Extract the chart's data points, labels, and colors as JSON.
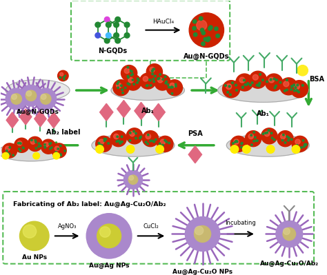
{
  "background_color": "#ffffff",
  "colors": {
    "red_ball": "#cc2200",
    "green_arrow": "#33aa33",
    "purple_spike": "#9966bb",
    "purple_core": "#aa88cc",
    "yellow_ball": "#dddd22",
    "yellow_green": "#bbcc22",
    "gray_plate_light": "#e8e8e8",
    "gray_plate": "#d0d0d0",
    "pink_diamond": "#e06880",
    "antibody_color": "#44aa66",
    "au_ag_color": "#aa88cc",
    "box_border": "#55bb55",
    "yellow_star": "#ffee00"
  },
  "labels": {
    "ngqds": "N-GQDs",
    "au_ngqds": "Au@N-GQDs",
    "haucl4": "HAuCl₄",
    "ab1": "Ab₁",
    "bsa": "BSA",
    "psa": "PSA",
    "ab2_label": "Ab₂ label",
    "fab_title": "Fabricating of Ab₂ label: Au@Ag-Cu₂O/Ab₂",
    "au_nps": "Au NPs",
    "auag_nps": "Au@Ag NPs",
    "auagcuo_nps": "Au@Ag-Cu₂O NPs",
    "auagcuo_ab2": "Au@Ag-Cu₂O/Ab₂",
    "agno3": "AgNO₃",
    "cucl2": "CuCl₂",
    "incubating": "Incubating"
  }
}
